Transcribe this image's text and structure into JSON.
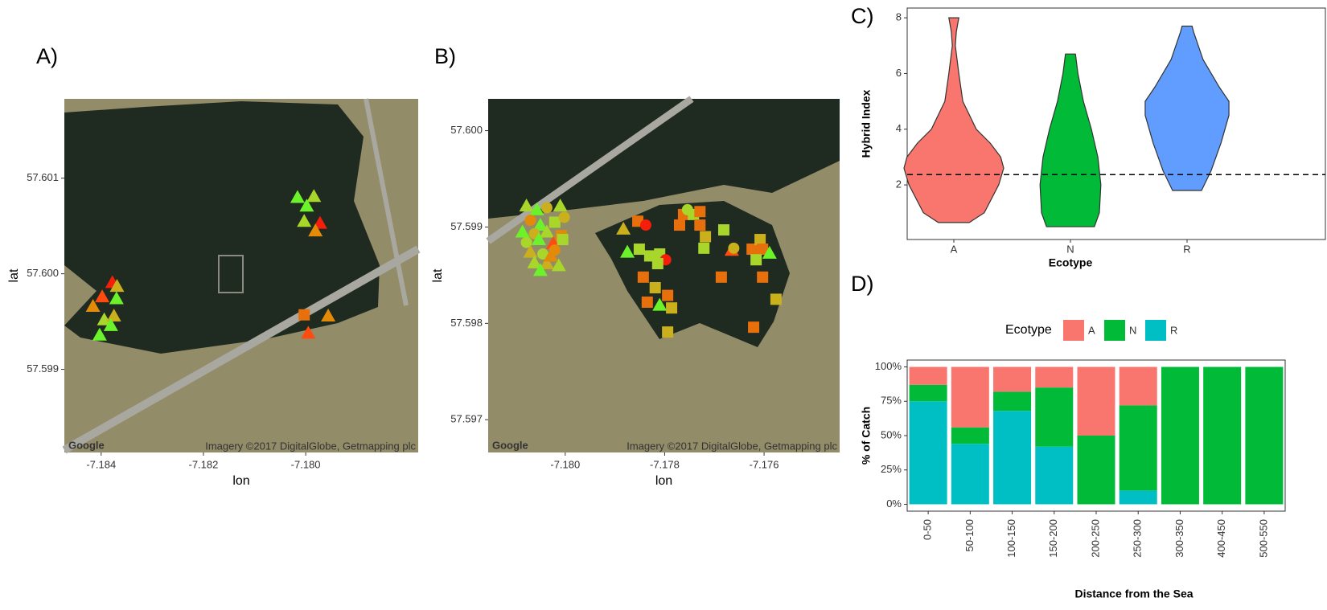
{
  "chart_data": [
    {
      "type": "scatter",
      "panel": "A)",
      "xlabel": "lon",
      "ylabel": "lat",
      "logo": "Google",
      "attribution": "Imagery ©2017 DigitalGlobe, Getmapping plc",
      "xlim": [
        -7.18472,
        -7.1778
      ],
      "ylim": [
        57.59813,
        57.60183
      ],
      "xticks": [
        -7.184,
        -7.182,
        {
          "value": -7.18,
          "label": "-7.180"
        }
      ],
      "yticks": [
        57.599,
        {
          "value": 57.6,
          "label": "57.600"
        },
        57.601
      ],
      "x": [
        -7.18016,
        -7.17984,
        -7.17998,
        -7.18003,
        -7.17972,
        -7.17981,
        -7.18003,
        -7.17956,
        -7.17995,
        -7.18378,
        -7.18369,
        -7.18398,
        -7.1837,
        -7.18416,
        -7.18394,
        -7.18375,
        -7.18381,
        -7.18403
      ],
      "y": [
        57.6008,
        57.60081,
        57.60071,
        57.60055,
        57.60053,
        57.60045,
        57.59957,
        57.59956,
        57.59938,
        57.59991,
        57.59987,
        57.59976,
        57.59974,
        57.59966,
        57.59952,
        57.59956,
        57.59946,
        57.59936
      ],
      "colors": [
        "#6cf22a",
        "#a8d62a",
        "#6cf22a",
        "#a8d62a",
        "#f41e0a",
        "#e38a08",
        "#e8700c",
        "#e38a08",
        "#ff4a10",
        "#f41e0a",
        "#c9b01c",
        "#ff4a10",
        "#6cf22a",
        "#e38a08",
        "#a8d62a",
        "#c9b01c",
        "#6cf22a",
        "#6cf22a"
      ],
      "markers": [
        "triangle",
        "triangle",
        "triangle",
        "triangle",
        "triangle",
        "triangle",
        "square",
        "triangle",
        "triangle",
        "triangle",
        "triangle",
        "triangle",
        "triangle",
        "triangle",
        "triangle",
        "triangle",
        "triangle",
        "triangle"
      ]
    },
    {
      "type": "scatter",
      "panel": "B)",
      "xlabel": "lon",
      "ylabel": "lat",
      "logo": "Google",
      "attribution": "Imagery ©2017 DigitalGlobe, Getmapping plc",
      "xlim": [
        -7.18155,
        -7.17448
      ],
      "ylim": [
        57.59666,
        57.60033
      ],
      "xticks": [
        {
          "value": -7.18,
          "label": "-7.180"
        },
        -7.178,
        -7.176
      ],
      "yticks": [
        57.597,
        57.598,
        57.599,
        {
          "value": 57.6,
          "label": "57.600"
        }
      ],
      "x": [
        -7.18078,
        -7.18057,
        -7.18037,
        -7.1801,
        -7.1807,
        -7.1805,
        -7.18021,
        -7.18002,
        -7.18086,
        -7.18062,
        -7.18037,
        -7.18008,
        -7.18078,
        -7.18053,
        -7.18024,
        -7.18005,
        -7.1807,
        -7.18045,
        -7.18021,
        -7.18062,
        -7.18037,
        -7.18013,
        -7.1805,
        -7.18029,
        -7.17854,
        -7.17838,
        -7.17883,
        -7.17875,
        -7.17851,
        -7.1783,
        -7.1781,
        -7.17798,
        -7.17814,
        -7.17843,
        -7.17819,
        -7.17794,
        -7.17835,
        -7.1781,
        -7.17786,
        -7.17794,
        -7.1777,
        -7.17762,
        -7.17754,
        -7.17742,
        -7.17729,
        -7.17729,
        -7.17718,
        -7.17721,
        -7.17681,
        -7.17686,
        -7.17665,
        -7.17661,
        -7.17624,
        -7.17608,
        -7.17603,
        -7.17589,
        -7.17616,
        -7.17603,
        -7.17576,
        -7.17621
      ],
      "y": [
        57.59922,
        57.59918,
        57.5992,
        57.59922,
        57.59907,
        57.59902,
        57.59905,
        57.5991,
        57.59895,
        57.59893,
        57.59895,
        57.59891,
        57.59884,
        57.59887,
        57.59883,
        57.59887,
        57.59874,
        57.59872,
        57.59876,
        57.59863,
        57.59862,
        57.5986,
        57.59855,
        57.5987,
        57.59906,
        57.59902,
        57.59898,
        57.59874,
        57.59877,
        57.5987,
        57.59872,
        57.59866,
        57.59862,
        57.59848,
        57.59837,
        57.59829,
        57.59822,
        57.59819,
        57.59816,
        57.59791,
        57.59902,
        57.59913,
        57.59918,
        57.59913,
        57.59916,
        57.59902,
        57.5989,
        57.59878,
        57.59897,
        57.59848,
        57.59876,
        57.59878,
        57.59877,
        57.59887,
        57.59877,
        57.59873,
        57.59866,
        57.59848,
        57.59825,
        57.59796
      ],
      "colors": [
        "#a8d62a",
        "#6cf22a",
        "#c9b01c",
        "#a8d62a",
        "#e38a08",
        "#6cf22a",
        "#a8d62a",
        "#c9b01c",
        "#6cf22a",
        "#c9b01c",
        "#a8d62a",
        "#e38a08",
        "#a8d62a",
        "#6cf22a",
        "#ff4a10",
        "#a8d62a",
        "#c9b01c",
        "#a8d62a",
        "#e38a08",
        "#a8d62a",
        "#c9b01c",
        "#a8d62a",
        "#6cf22a",
        "#e38a08",
        "#e8700c",
        "#f41e0a",
        "#c9b01c",
        "#6cf22a",
        "#a8d62a",
        "#a8d62a",
        "#a8d62a",
        "#f41e0a",
        "#a8d62a",
        "#e8700c",
        "#c9b01c",
        "#e8700c",
        "#e8700c",
        "#6cf22a",
        "#c9b01c",
        "#c9b01c",
        "#e8700c",
        "#e8700c",
        "#a8d62a",
        "#a8d62a",
        "#e8700c",
        "#e8700c",
        "#c9b01c",
        "#a8d62a",
        "#a8d62a",
        "#e8700c",
        "#ff4a10",
        "#c9b01c",
        "#e8700c",
        "#c9b01c",
        "#e8700c",
        "#6cf22a",
        "#a8d62a",
        "#e8700c",
        "#c9b01c",
        "#e8700c"
      ],
      "markers": [
        "triangle",
        "triangle",
        "circle",
        "triangle",
        "circle",
        "triangle",
        "square",
        "circle",
        "triangle",
        "circle",
        "triangle",
        "square",
        "circle",
        "triangle",
        "triangle",
        "square",
        "triangle",
        "circle",
        "circle",
        "triangle",
        "triangle",
        "triangle",
        "triangle",
        "triangle",
        "square",
        "circle",
        "triangle",
        "triangle",
        "square",
        "square",
        "square",
        "circle",
        "square",
        "square",
        "square",
        "square",
        "square",
        "triangle",
        "square",
        "square",
        "square",
        "square",
        "circle",
        "square",
        "square",
        "square",
        "square",
        "square",
        "square",
        "square",
        "triangle",
        "circle",
        "square",
        "square",
        "square",
        "triangle",
        "square",
        "square",
        "square",
        "square"
      ]
    },
    {
      "type": "violin",
      "panel": "C)",
      "xlabel": "Ecotype",
      "ylabel": "Hybrid Index",
      "categories": [
        "A",
        "N",
        "R"
      ],
      "ylim": [
        0.04,
        8.35
      ],
      "yticks": [
        2,
        4,
        6,
        8
      ],
      "hline": 2.37,
      "violins": [
        {
          "color": "#f8766d",
          "y": [
            0.65,
            1,
            2,
            2.6,
            3,
            3.5,
            4,
            5,
            6,
            7,
            7.5,
            8
          ],
          "density": [
            0.31,
            0.61,
            0.9,
            1,
            0.94,
            0.73,
            0.45,
            0.18,
            0.1,
            0.03,
            0.05,
            0.1
          ]
        },
        {
          "color": "#00ba38",
          "y": [
            0.5,
            1,
            2,
            3,
            4,
            5,
            6,
            6.7
          ],
          "density": [
            0.48,
            0.58,
            0.61,
            0.55,
            0.42,
            0.26,
            0.15,
            0.1
          ]
        },
        {
          "color": "#619cff",
          "y": [
            1.8,
            2.5,
            3.5,
            4.5,
            5,
            5.5,
            6.5,
            7.5,
            7.7
          ],
          "density": [
            0.29,
            0.48,
            0.68,
            0.84,
            0.84,
            0.65,
            0.32,
            0.13,
            0.1
          ]
        }
      ]
    },
    {
      "type": "stacked_bar",
      "panel": "D)",
      "xlabel": "Distance from the Sea",
      "ylabel": "% of Catch",
      "legend_title": "Ecotype",
      "categories": [
        "0-50",
        "50-100",
        "100-150",
        "150-200",
        "200-250",
        "250-300",
        "300-350",
        "400-450",
        "500-550"
      ],
      "ylim": [
        -5,
        105
      ],
      "yticks": [
        {
          "value": 0,
          "label": "0%"
        },
        {
          "value": 25,
          "label": "25%"
        },
        {
          "value": 50,
          "label": "50%"
        },
        {
          "value": 75,
          "label": "75%"
        },
        {
          "value": 100,
          "label": "100%"
        }
      ],
      "series": [
        {
          "name": "A",
          "color": "#f8766d",
          "values": [
            13,
            44,
            18,
            15,
            50,
            28,
            0,
            0,
            0
          ]
        },
        {
          "name": "N",
          "color": "#00ba38",
          "values": [
            12,
            12,
            14,
            43,
            50,
            62,
            100,
            100,
            100
          ]
        },
        {
          "name": "R",
          "color": "#00bfc4",
          "values": [
            75,
            44,
            68,
            42,
            0,
            10,
            0,
            0,
            0
          ]
        }
      ]
    }
  ]
}
